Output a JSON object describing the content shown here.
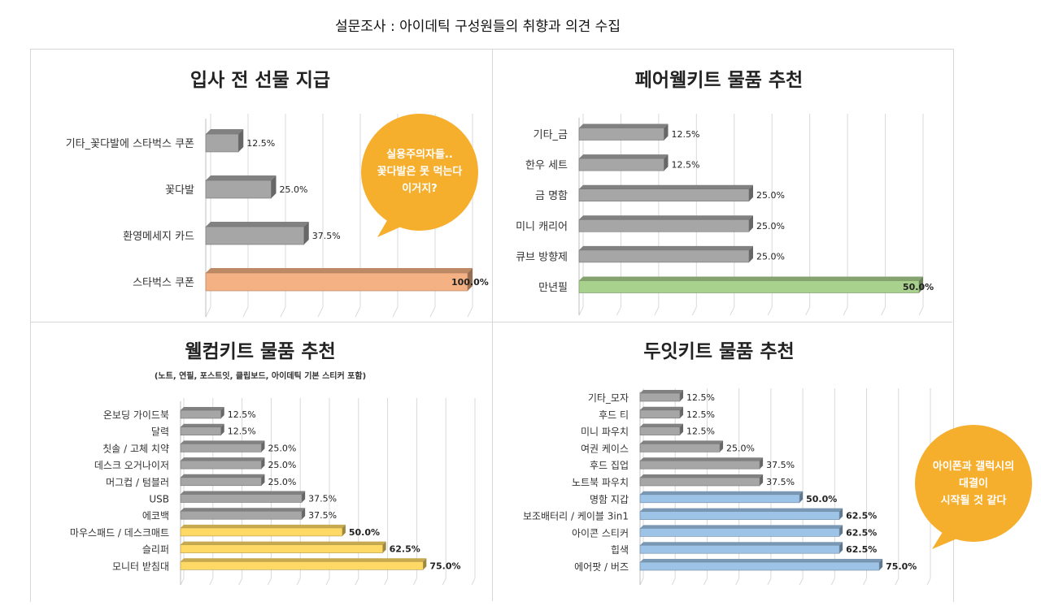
{
  "page": {
    "title": "설문조사 : 아이데틱 구성원들의 취향과 의견 수집"
  },
  "colors": {
    "gray": "#a6a6a6",
    "orange": "#f4b183",
    "green": "#a9d18e",
    "yellow": "#ffd966",
    "blue": "#9dc3e6",
    "bubble": "#f6ae2d"
  },
  "callouts": [
    {
      "lines": [
        "실용주의자들..",
        "꽃다발은 못 먹는다",
        "이거지?"
      ]
    },
    {
      "lines": [
        "아이폰과 갤럭시의",
        "대결이",
        "시작될 것 같다"
      ]
    }
  ],
  "chart_data": [
    {
      "type": "bar",
      "orientation": "horizontal",
      "title": "입사 전 선물 지급",
      "subtitle": "",
      "xlim": [
        0,
        100
      ],
      "categories": [
        "기타_꽃다발에 스타벅스 쿠폰",
        "꽃다발",
        "환영메세지 카드",
        "스타벅스 쿠폰"
      ],
      "values": [
        12.5,
        25.0,
        37.5,
        100.0
      ],
      "labels": [
        "12.5%",
        "25.0%",
        "37.5%",
        "100.0%"
      ],
      "bar_colors": [
        "gray",
        "gray",
        "gray",
        "orange"
      ]
    },
    {
      "type": "bar",
      "orientation": "horizontal",
      "title": "페어웰키트 물품 추천",
      "subtitle": "",
      "xlim": [
        0,
        50
      ],
      "categories": [
        "기타_금",
        "한우 세트",
        "금 명함",
        "미니 캐리어",
        "큐브 방향제",
        "만년필"
      ],
      "values": [
        12.5,
        12.5,
        25.0,
        25.0,
        25.0,
        50.0
      ],
      "labels": [
        "12.5%",
        "12.5%",
        "25.0%",
        "25.0%",
        "25.0%",
        "50.0%"
      ],
      "bar_colors": [
        "gray",
        "gray",
        "gray",
        "gray",
        "gray",
        "green"
      ]
    },
    {
      "type": "bar",
      "orientation": "horizontal",
      "title": "웰컴키트 물품 추천",
      "subtitle": "(노트, 연필, 포스트잇, 클립보드, 아이데틱 기본 스티커 포함)",
      "xlim": [
        0,
        90
      ],
      "categories": [
        "온보딩 가이드북",
        "달력",
        "칫솔 / 고체 치약",
        "데스크 오거나이저",
        "머그컵 / 텀블러",
        "USB",
        "에코백",
        "마우스패드 / 데스크매트",
        "슬리퍼",
        "모니터 받침대"
      ],
      "values": [
        12.5,
        12.5,
        25.0,
        25.0,
        25.0,
        37.5,
        37.5,
        50.0,
        62.5,
        75.0
      ],
      "labels": [
        "12.5%",
        "12.5%",
        "25.0%",
        "25.0%",
        "25.0%",
        "37.5%",
        "37.5%",
        "50.0%",
        "62.5%",
        "75.0%"
      ],
      "bar_colors": [
        "gray",
        "gray",
        "gray",
        "gray",
        "gray",
        "gray",
        "gray",
        "yellow",
        "yellow",
        "yellow"
      ]
    },
    {
      "type": "bar",
      "orientation": "horizontal",
      "title": "두잇키트 물품 추천",
      "subtitle": "",
      "xlim": [
        0,
        90
      ],
      "categories": [
        "기타_모자",
        "후드 티",
        "미니 파우치",
        "여권 케이스",
        "후드 집업",
        "노트북 파우치",
        "명함 지갑",
        "보조배터리 / 케이블 3in1",
        "아이콘 스티커",
        "힙색",
        "에어팟 / 버즈"
      ],
      "values": [
        12.5,
        12.5,
        12.5,
        25.0,
        37.5,
        37.5,
        50.0,
        62.5,
        62.5,
        62.5,
        75.0
      ],
      "labels": [
        "12.5%",
        "12.5%",
        "12.5%",
        "25.0%",
        "37.5%",
        "37.5%",
        "50.0%",
        "62.5%",
        "62.5%",
        "62.5%",
        "75.0%"
      ],
      "bar_colors": [
        "gray",
        "gray",
        "gray",
        "gray",
        "gray",
        "gray",
        "blue",
        "blue",
        "blue",
        "blue",
        "blue"
      ]
    }
  ]
}
